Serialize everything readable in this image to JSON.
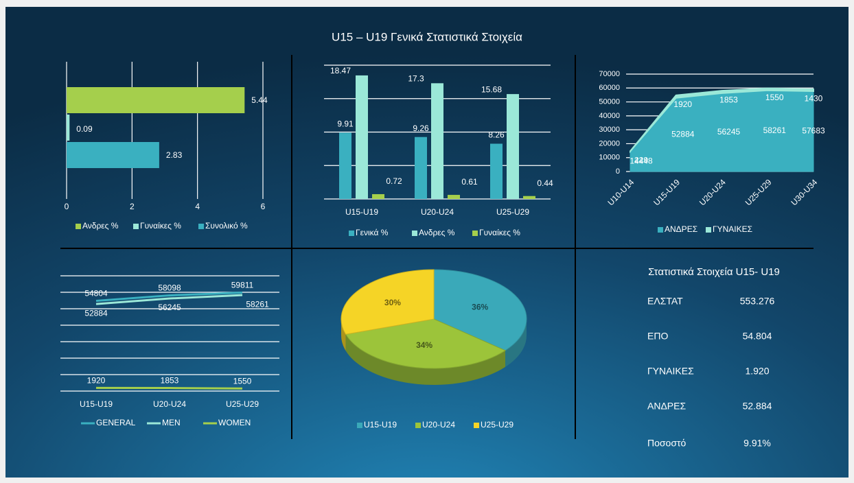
{
  "title": "U15 – U19 Γενικά Στατιστικά Στοιχεία",
  "chart_data": [
    {
      "type": "barh",
      "categories": [
        null
      ],
      "series": [
        {
          "name": "Ανδρες %",
          "color": "#a5cf4c",
          "values": [
            5.44
          ]
        },
        {
          "name": "Γυναίκες %",
          "color": "#9be8d8",
          "values": [
            0.09
          ]
        },
        {
          "name": "Συνολικό %",
          "color": "#3ab0c0",
          "values": [
            2.83
          ]
        }
      ],
      "xlim": [
        0,
        6
      ],
      "xticks": [
        0,
        2,
        4,
        6
      ],
      "grid": true,
      "legend": "bottom"
    },
    {
      "type": "bar",
      "categories": [
        "U15-U19",
        "U20-U24",
        "U25-U29"
      ],
      "series": [
        {
          "name": "Γενικά %",
          "color": "#3ab0c0",
          "values": [
            9.91,
            9.26,
            8.26
          ]
        },
        {
          "name": "Ανδρες %",
          "color": "#9be8d8",
          "values": [
            18.47,
            17.3,
            15.68
          ]
        },
        {
          "name": "Γυναίκες %",
          "color": "#a5cf4c",
          "values": [
            0.72,
            0.61,
            0.44
          ]
        }
      ],
      "ylim": [
        0,
        20
      ],
      "yticks": [
        0,
        5,
        10,
        15,
        20
      ],
      "grid": true,
      "legend": "bottom"
    },
    {
      "type": "area",
      "stacked": true,
      "categories": [
        "U10-U14",
        "U15-U19",
        "U20-U24",
        "U25-U29",
        "U30-U34"
      ],
      "series": [
        {
          "name": "ΑΝΔΡΕΣ",
          "color": "#3ab0c0",
          "values": [
            14448,
            52884,
            56245,
            58261,
            57683
          ]
        },
        {
          "name": "ΓΥΝΑΙΚΕΣ",
          "color": "#9be8d8",
          "values": [
            229,
            1920,
            1853,
            1550,
            1430
          ]
        }
      ],
      "ylim": [
        0,
        70000
      ],
      "yticks": [
        0,
        10000,
        20000,
        30000,
        40000,
        50000,
        60000,
        70000
      ],
      "grid": true,
      "legend": "bottom"
    },
    {
      "type": "line",
      "categories": [
        "U15-U19",
        "U20-U24",
        "U25-U29"
      ],
      "series": [
        {
          "name": "GENERAL",
          "color": "#3ab0c0",
          "values": [
            54804,
            58098,
            59811
          ]
        },
        {
          "name": "MEN",
          "color": "#9be8d8",
          "values": [
            52884,
            56245,
            58261
          ]
        },
        {
          "name": "WOMEN",
          "color": "#a5cf4c",
          "values": [
            1920,
            1853,
            1550
          ]
        }
      ],
      "ylim": [
        0,
        70000
      ],
      "yticks": [
        0,
        10000,
        20000,
        30000,
        40000,
        50000,
        60000,
        70000
      ],
      "grid": true,
      "legend": "bottom"
    },
    {
      "type": "pie",
      "categories": [
        "U15-U19",
        "U20-U24",
        "U25-U29"
      ],
      "values": [
        36,
        34,
        30
      ],
      "value_labels": [
        "36%",
        "34%",
        "30%"
      ],
      "colors": [
        "#3aa9b9",
        "#9cc43a",
        "#f5d426"
      ],
      "legend": "bottom"
    }
  ],
  "table": {
    "title": "Στατιστικά Στοιχεία   U15- U19",
    "rows": [
      [
        "ΕΛΣΤΑΤ",
        "553.276"
      ],
      [
        "ΕΠΟ",
        "54.804"
      ],
      [
        "ΓΥΝΑΙΚΕΣ",
        "1.920"
      ],
      [
        "ΑΝΔΡΕΣ",
        "52.884"
      ],
      [
        "Ποσοστό",
        "9.91%"
      ]
    ]
  }
}
